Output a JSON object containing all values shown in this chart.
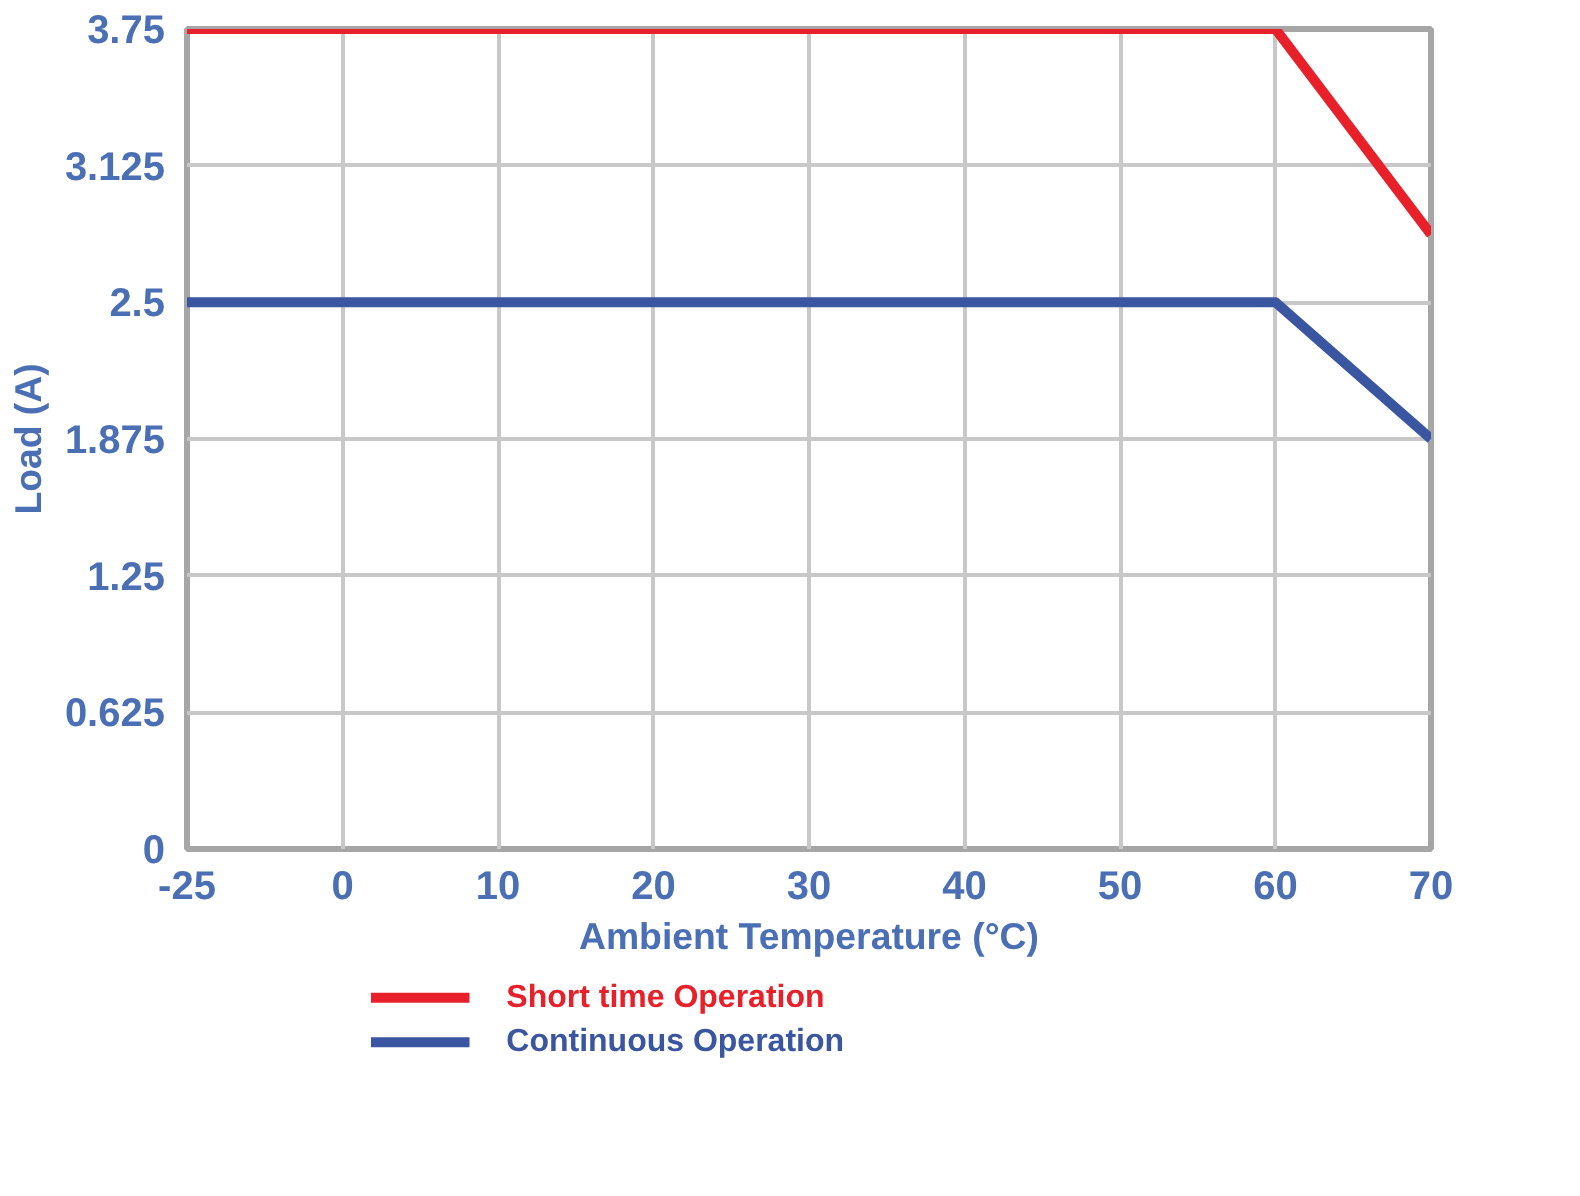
{
  "chart_data": {
    "type": "line",
    "xlabel": "Ambient Temperature (°C)",
    "ylabel": "Load (A)",
    "categories": [
      "-25",
      "0",
      "10",
      "20",
      "30",
      "40",
      "50",
      "60",
      "70"
    ],
    "series": [
      {
        "name": "Short time Operation",
        "color": "#e8202a",
        "values": [
          3.75,
          3.75,
          3.75,
          3.75,
          3.75,
          3.75,
          3.75,
          3.75,
          2.81
        ]
      },
      {
        "name": "Continuous Operation",
        "color": "#3a56a0",
        "values": [
          2.5,
          2.5,
          2.5,
          2.5,
          2.5,
          2.5,
          2.5,
          2.5,
          1.875
        ]
      }
    ],
    "ylim": [
      0,
      3.75
    ],
    "yticks": [
      0,
      0.625,
      1.25,
      1.875,
      2.5,
      3.125,
      3.75
    ],
    "grid": true,
    "legend": "bottom",
    "marker": "none",
    "line_style": "solid"
  }
}
